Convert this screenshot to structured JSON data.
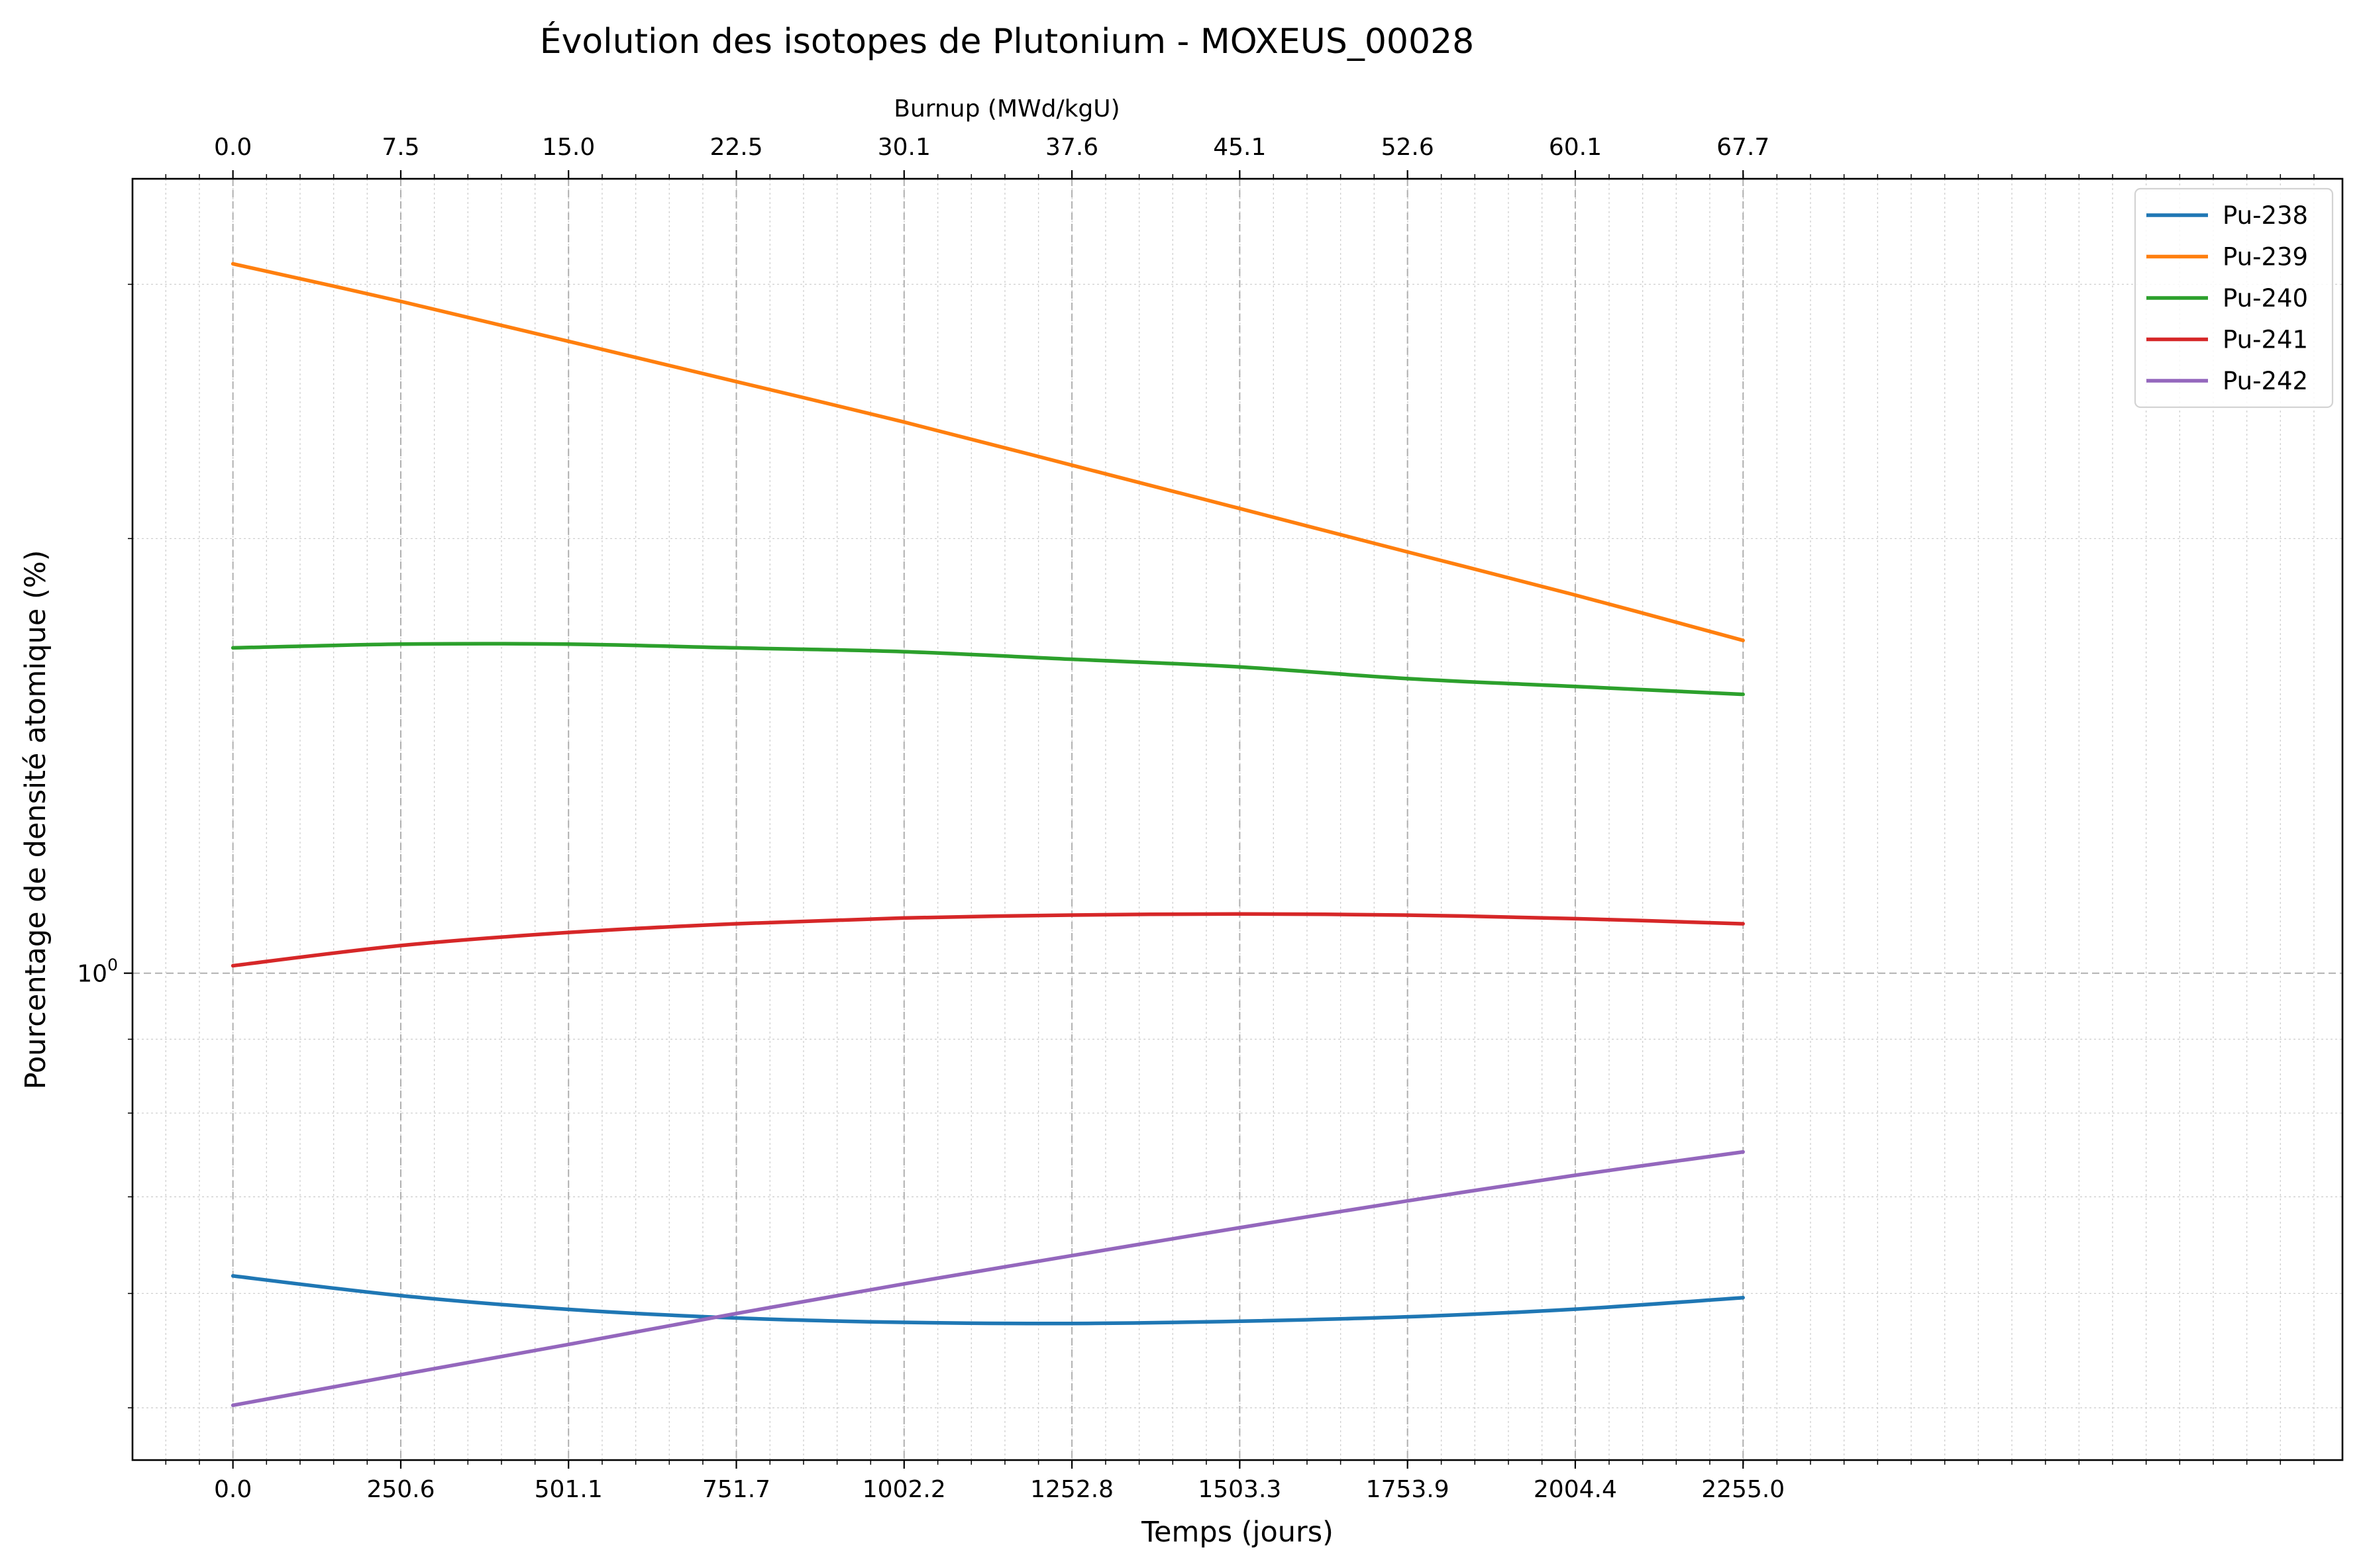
{
  "chart_data": {
    "type": "line",
    "title": "Évolution des isotopes de Plutonium - MOXEUS_00028",
    "xlabel": "Temps (jours)",
    "ylabel": "Pourcentage de densité atomique (%)",
    "top_xlabel": "Burnup (MWd/kgU)",
    "yscale": "log",
    "xlim": [
      -150,
      3150
    ],
    "ylim": [
      0.46,
      3.55
    ],
    "x_ticks": [
      "0.0",
      "250.6",
      "501.1",
      "751.7",
      "1002.2",
      "1252.8",
      "1503.3",
      "1753.9",
      "2004.4",
      "2255.0"
    ],
    "x_tick_values": [
      0.0,
      250.6,
      501.1,
      751.7,
      1002.2,
      1252.8,
      1503.3,
      1753.9,
      2004.4,
      2255.0
    ],
    "top_x_ticks": [
      "0.0",
      "7.5",
      "15.0",
      "22.5",
      "30.1",
      "37.6",
      "45.1",
      "52.6",
      "60.1",
      "67.7"
    ],
    "y_ticks": [
      {
        "base": "10",
        "exp": "0",
        "value": 1
      }
    ],
    "grid": true,
    "legend_position": "upper right",
    "x": [
      0,
      250,
      500,
      750,
      1000,
      1250,
      1500,
      1750,
      2000,
      2255
    ],
    "series": [
      {
        "name": "Pu-238",
        "color": "#1f77b4",
        "values": [
          0.617,
          0.598,
          0.585,
          0.577,
          0.573,
          0.572,
          0.574,
          0.578,
          0.585,
          0.596
        ]
      },
      {
        "name": "Pu-239",
        "color": "#ff7f0e",
        "values": [
          3.1,
          2.92,
          2.74,
          2.57,
          2.41,
          2.25,
          2.1,
          1.96,
          1.83,
          1.7
        ]
      },
      {
        "name": "Pu-240",
        "color": "#2ca02c",
        "values": [
          1.68,
          1.69,
          1.69,
          1.68,
          1.67,
          1.65,
          1.63,
          1.6,
          1.58,
          1.56
        ]
      },
      {
        "name": "Pu-241",
        "color": "#d62728",
        "values": [
          1.012,
          1.045,
          1.067,
          1.082,
          1.092,
          1.097,
          1.099,
          1.097,
          1.091,
          1.082
        ]
      },
      {
        "name": "Pu-242",
        "color": "#9467bd",
        "values": [
          0.502,
          0.527,
          0.553,
          0.581,
          0.609,
          0.637,
          0.666,
          0.695,
          0.724,
          0.752
        ]
      }
    ]
  }
}
